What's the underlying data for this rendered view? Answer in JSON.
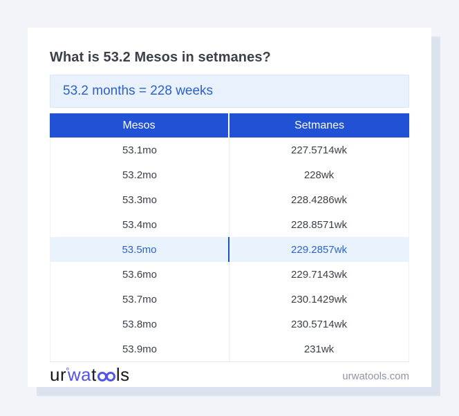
{
  "title": "What is 53.2 Mesos in setmanes?",
  "answer": "53.2 months = 228 weeks",
  "table": {
    "headers": [
      "Mesos",
      "Setmanes"
    ],
    "rows": [
      {
        "mesos": "53.1mo",
        "setmanes": "227.5714wk",
        "highlighted": false
      },
      {
        "mesos": "53.2mo",
        "setmanes": "228wk",
        "highlighted": false
      },
      {
        "mesos": "53.3mo",
        "setmanes": "228.4286wk",
        "highlighted": false
      },
      {
        "mesos": "53.4mo",
        "setmanes": "228.8571wk",
        "highlighted": false
      },
      {
        "mesos": "53.5mo",
        "setmanes": "229.2857wk",
        "highlighted": true
      },
      {
        "mesos": "53.6mo",
        "setmanes": "229.7143wk",
        "highlighted": false
      },
      {
        "mesos": "53.7mo",
        "setmanes": "230.1429wk",
        "highlighted": false
      },
      {
        "mesos": "53.8mo",
        "setmanes": "230.5714wk",
        "highlighted": false
      },
      {
        "mesos": "53.9mo",
        "setmanes": "231wk",
        "highlighted": false
      }
    ]
  },
  "footer": {
    "logo": {
      "prefix": "ur",
      "ring": "°",
      "mid": "wa",
      "t": "t",
      "suffix": "ls"
    },
    "site": "urwatools.com"
  },
  "colors": {
    "page_background": "#f2f4fa",
    "card_background": "#ffffff",
    "card_shadow": "#dce2ee",
    "header_blue": "#2151d4",
    "answer_background": "#e9f1fc",
    "answer_text": "#2b61c8",
    "highlight_background": "#e9f3fe",
    "highlight_text": "#2d64c9",
    "highlight_divider": "#1d53b6",
    "row_text": "#3a3f48",
    "logo_blue": "#5054e9",
    "site_text": "#8d95a6"
  }
}
